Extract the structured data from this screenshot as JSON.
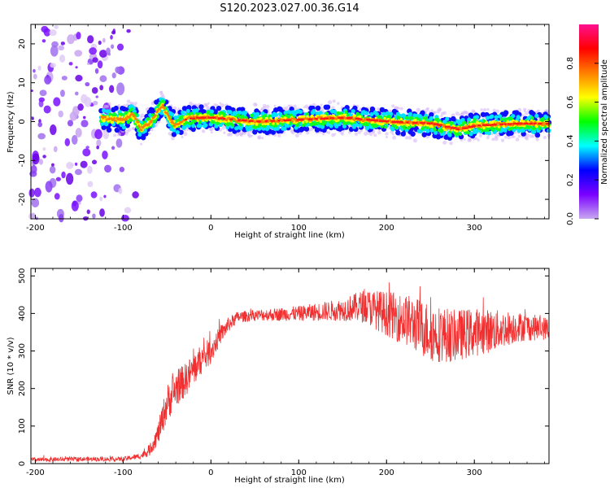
{
  "title": "S120.2023.027.00.36.G14",
  "chart_data": [
    {
      "type": "heatmap",
      "xlabel": "Height of straight line (km)",
      "ylabel": "Frequency (Hz)",
      "xlim": [
        -205,
        385
      ],
      "ylim": [
        -25,
        25
      ],
      "x_ticks": [
        -200,
        -100,
        0,
        100,
        200,
        300
      ],
      "y_ticks": [
        -20,
        -10,
        0,
        10,
        20
      ],
      "colorbar": {
        "label": "Normalized spectral amplitude",
        "range": [
          0.0,
          1.0
        ],
        "ticks": [
          0.0,
          0.2,
          0.4,
          0.6,
          0.8
        ],
        "tick_labels": [
          "0.0",
          "0.2",
          "0.4",
          "0.6",
          "0.8"
        ],
        "colormap": [
          "#c8a8f0",
          "#7a00ff",
          "#0000ff",
          "#00ffff",
          "#00ff00",
          "#ffff00",
          "#ff7f00",
          "#ff0000",
          "#ff1090"
        ]
      },
      "ridge": {
        "x": [
          -125,
          -110,
          -100,
          -95,
          -90,
          -85,
          -80,
          -75,
          -70,
          -65,
          -60,
          -55,
          -50,
          -45,
          -40,
          -30,
          -20,
          0,
          50,
          100,
          150,
          200,
          250,
          280,
          300,
          350,
          385
        ],
        "y": [
          1,
          0.5,
          0.5,
          1,
          2,
          0.5,
          -2,
          -1,
          -0.5,
          1,
          3,
          4,
          2,
          0,
          -1,
          0.5,
          1,
          1,
          0,
          0.5,
          1,
          0,
          -0.5,
          -2,
          -1,
          -0.5,
          -0.5
        ]
      }
    },
    {
      "type": "line",
      "xlabel": "Height of straight line (km)",
      "ylabel": "SNR (10 * v/v)",
      "xlim": [
        -205,
        385
      ],
      "ylim": [
        0,
        520
      ],
      "x_ticks": [
        -200,
        -100,
        0,
        100,
        200,
        300
      ],
      "y_ticks": [
        0,
        100,
        200,
        300,
        400,
        500
      ],
      "series": [
        {
          "color": "#f03030",
          "x": [
            -205,
            -150,
            -100,
            -80,
            -70,
            -60,
            -50,
            -40,
            -30,
            -20,
            -10,
            0,
            10,
            20,
            30,
            50,
            100,
            150,
            175,
            200,
            225,
            250,
            275,
            300,
            325,
            350,
            385
          ],
          "y": [
            10,
            12,
            12,
            20,
            35,
            80,
            160,
            200,
            220,
            250,
            280,
            300,
            340,
            370,
            390,
            395,
            400,
            410,
            420,
            400,
            380,
            350,
            340,
            350,
            355,
            365,
            360
          ],
          "amplitude": [
            6,
            6,
            6,
            8,
            15,
            30,
            50,
            50,
            45,
            45,
            40,
            35,
            25,
            20,
            15,
            15,
            20,
            30,
            45,
            60,
            70,
            80,
            70,
            65,
            55,
            40,
            30
          ]
        }
      ]
    }
  ]
}
